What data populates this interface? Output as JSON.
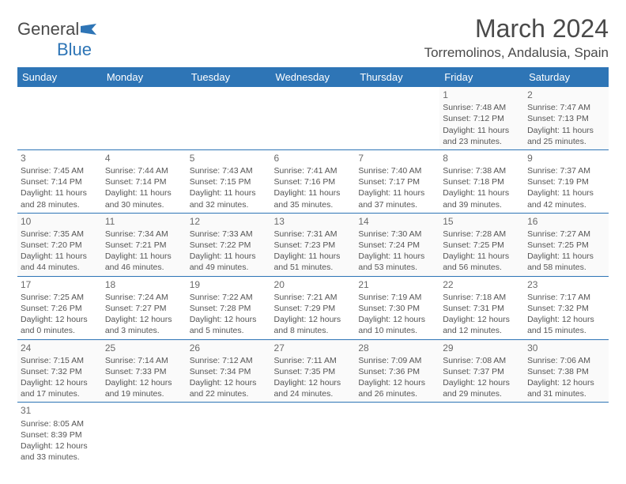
{
  "logo": {
    "brand_a": "General",
    "brand_b": "Blue"
  },
  "header": {
    "title": "March 2024",
    "location": "Torremolinos, Andalusia, Spain"
  },
  "colors": {
    "header_bg": "#2e75b6",
    "header_text": "#ffffff",
    "border": "#2e75b6",
    "body_bg": "#ffffff",
    "alt_row_bg": "#fafafa",
    "text": "#555555",
    "title_text": "#4a4a4a"
  },
  "day_headers": [
    "Sunday",
    "Monday",
    "Tuesday",
    "Wednesday",
    "Thursday",
    "Friday",
    "Saturday"
  ],
  "weeks": [
    [
      null,
      null,
      null,
      null,
      null,
      {
        "n": "1",
        "sr": "Sunrise: 7:48 AM",
        "ss": "Sunset: 7:12 PM",
        "dl": "Daylight: 11 hours and 23 minutes."
      },
      {
        "n": "2",
        "sr": "Sunrise: 7:47 AM",
        "ss": "Sunset: 7:13 PM",
        "dl": "Daylight: 11 hours and 25 minutes."
      }
    ],
    [
      {
        "n": "3",
        "sr": "Sunrise: 7:45 AM",
        "ss": "Sunset: 7:14 PM",
        "dl": "Daylight: 11 hours and 28 minutes."
      },
      {
        "n": "4",
        "sr": "Sunrise: 7:44 AM",
        "ss": "Sunset: 7:14 PM",
        "dl": "Daylight: 11 hours and 30 minutes."
      },
      {
        "n": "5",
        "sr": "Sunrise: 7:43 AM",
        "ss": "Sunset: 7:15 PM",
        "dl": "Daylight: 11 hours and 32 minutes."
      },
      {
        "n": "6",
        "sr": "Sunrise: 7:41 AM",
        "ss": "Sunset: 7:16 PM",
        "dl": "Daylight: 11 hours and 35 minutes."
      },
      {
        "n": "7",
        "sr": "Sunrise: 7:40 AM",
        "ss": "Sunset: 7:17 PM",
        "dl": "Daylight: 11 hours and 37 minutes."
      },
      {
        "n": "8",
        "sr": "Sunrise: 7:38 AM",
        "ss": "Sunset: 7:18 PM",
        "dl": "Daylight: 11 hours and 39 minutes."
      },
      {
        "n": "9",
        "sr": "Sunrise: 7:37 AM",
        "ss": "Sunset: 7:19 PM",
        "dl": "Daylight: 11 hours and 42 minutes."
      }
    ],
    [
      {
        "n": "10",
        "sr": "Sunrise: 7:35 AM",
        "ss": "Sunset: 7:20 PM",
        "dl": "Daylight: 11 hours and 44 minutes."
      },
      {
        "n": "11",
        "sr": "Sunrise: 7:34 AM",
        "ss": "Sunset: 7:21 PM",
        "dl": "Daylight: 11 hours and 46 minutes."
      },
      {
        "n": "12",
        "sr": "Sunrise: 7:33 AM",
        "ss": "Sunset: 7:22 PM",
        "dl": "Daylight: 11 hours and 49 minutes."
      },
      {
        "n": "13",
        "sr": "Sunrise: 7:31 AM",
        "ss": "Sunset: 7:23 PM",
        "dl": "Daylight: 11 hours and 51 minutes."
      },
      {
        "n": "14",
        "sr": "Sunrise: 7:30 AM",
        "ss": "Sunset: 7:24 PM",
        "dl": "Daylight: 11 hours and 53 minutes."
      },
      {
        "n": "15",
        "sr": "Sunrise: 7:28 AM",
        "ss": "Sunset: 7:25 PM",
        "dl": "Daylight: 11 hours and 56 minutes."
      },
      {
        "n": "16",
        "sr": "Sunrise: 7:27 AM",
        "ss": "Sunset: 7:25 PM",
        "dl": "Daylight: 11 hours and 58 minutes."
      }
    ],
    [
      {
        "n": "17",
        "sr": "Sunrise: 7:25 AM",
        "ss": "Sunset: 7:26 PM",
        "dl": "Daylight: 12 hours and 0 minutes."
      },
      {
        "n": "18",
        "sr": "Sunrise: 7:24 AM",
        "ss": "Sunset: 7:27 PM",
        "dl": "Daylight: 12 hours and 3 minutes."
      },
      {
        "n": "19",
        "sr": "Sunrise: 7:22 AM",
        "ss": "Sunset: 7:28 PM",
        "dl": "Daylight: 12 hours and 5 minutes."
      },
      {
        "n": "20",
        "sr": "Sunrise: 7:21 AM",
        "ss": "Sunset: 7:29 PM",
        "dl": "Daylight: 12 hours and 8 minutes."
      },
      {
        "n": "21",
        "sr": "Sunrise: 7:19 AM",
        "ss": "Sunset: 7:30 PM",
        "dl": "Daylight: 12 hours and 10 minutes."
      },
      {
        "n": "22",
        "sr": "Sunrise: 7:18 AM",
        "ss": "Sunset: 7:31 PM",
        "dl": "Daylight: 12 hours and 12 minutes."
      },
      {
        "n": "23",
        "sr": "Sunrise: 7:17 AM",
        "ss": "Sunset: 7:32 PM",
        "dl": "Daylight: 12 hours and 15 minutes."
      }
    ],
    [
      {
        "n": "24",
        "sr": "Sunrise: 7:15 AM",
        "ss": "Sunset: 7:32 PM",
        "dl": "Daylight: 12 hours and 17 minutes."
      },
      {
        "n": "25",
        "sr": "Sunrise: 7:14 AM",
        "ss": "Sunset: 7:33 PM",
        "dl": "Daylight: 12 hours and 19 minutes."
      },
      {
        "n": "26",
        "sr": "Sunrise: 7:12 AM",
        "ss": "Sunset: 7:34 PM",
        "dl": "Daylight: 12 hours and 22 minutes."
      },
      {
        "n": "27",
        "sr": "Sunrise: 7:11 AM",
        "ss": "Sunset: 7:35 PM",
        "dl": "Daylight: 12 hours and 24 minutes."
      },
      {
        "n": "28",
        "sr": "Sunrise: 7:09 AM",
        "ss": "Sunset: 7:36 PM",
        "dl": "Daylight: 12 hours and 26 minutes."
      },
      {
        "n": "29",
        "sr": "Sunrise: 7:08 AM",
        "ss": "Sunset: 7:37 PM",
        "dl": "Daylight: 12 hours and 29 minutes."
      },
      {
        "n": "30",
        "sr": "Sunrise: 7:06 AM",
        "ss": "Sunset: 7:38 PM",
        "dl": "Daylight: 12 hours and 31 minutes."
      }
    ],
    [
      {
        "n": "31",
        "sr": "Sunrise: 8:05 AM",
        "ss": "Sunset: 8:39 PM",
        "dl": "Daylight: 12 hours and 33 minutes."
      },
      null,
      null,
      null,
      null,
      null,
      null
    ]
  ]
}
